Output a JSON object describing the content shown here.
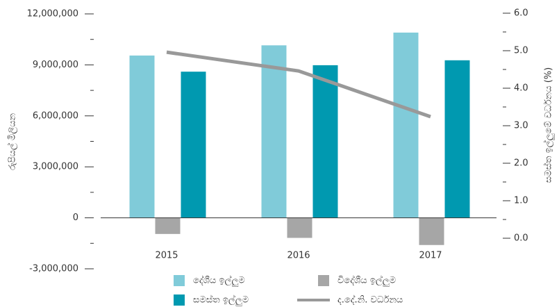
{
  "chart_data": {
    "type": "bar_line",
    "categories": [
      "2015",
      "2016",
      "2017"
    ],
    "y_label": "රුපියල් මිලියන",
    "y2_label": "සමස්ත ඉල්ලුමේ වර්ධනය (%)",
    "series": [
      {
        "name": "දේශීය ඉල්ලුම",
        "color": "#80cbd9",
        "type": "bar",
        "values": [
          9550000,
          10150000,
          10900000
        ]
      },
      {
        "name": "විදේශීය ඉල්ලුම",
        "color": "#a6a6a6",
        "type": "bar",
        "values": [
          -950000,
          -1180000,
          -1600000
        ]
      },
      {
        "name": "සමස්ත ඉල්ලුම",
        "color": "#0099b0",
        "type": "bar",
        "values": [
          8600000,
          8980000,
          9270000
        ]
      },
      {
        "name": "ද.දේ.නි. වර්ධනය",
        "color": "#999999",
        "type": "line",
        "axis": "y2",
        "values": [
          4.96,
          4.46,
          3.24
        ]
      }
    ],
    "ylim": [
      -3000000,
      12000000
    ],
    "yticks": [
      {
        "value": -3000000,
        "label": "-3,000,000"
      },
      0,
      {
        "value": 3000000,
        "label": "3,000,000"
      },
      {
        "value": 6000000,
        "label": "6,000,000"
      },
      {
        "value": 9000000,
        "label": "9,000,000"
      },
      {
        "value": 12000000,
        "label": "12,000,000"
      }
    ],
    "yticks_minor": [
      -1500000,
      1500000,
      4500000,
      7500000,
      10500000
    ],
    "y2lim": [
      0,
      6
    ],
    "y2ticks": [
      {
        "value": 0,
        "label": "0.0"
      },
      {
        "value": 1,
        "label": "1.0"
      },
      {
        "value": 2,
        "label": "2.0"
      },
      {
        "value": 3,
        "label": "3.0"
      },
      {
        "value": 4,
        "label": "4.0"
      },
      {
        "value": 5,
        "label": "5.0"
      },
      {
        "value": 6,
        "label": "6.0"
      }
    ],
    "y2ticks_minor": [
      0.5,
      1.5,
      2.5,
      3.5,
      4.5,
      5.5
    ]
  }
}
